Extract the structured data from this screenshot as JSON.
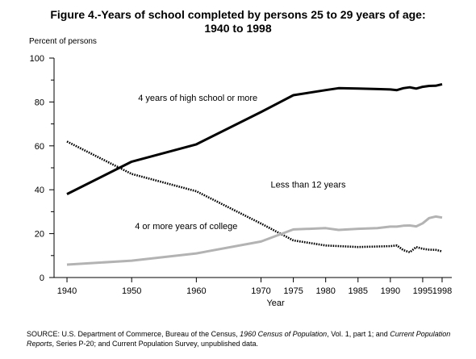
{
  "chart_data": {
    "type": "line",
    "title_line1": "Figure 4.-Years of school completed by persons 25 to 29 years of age:",
    "title_line2": "1940 to 1998",
    "ylabel": "Percent of persons",
    "xlabel": "Year",
    "ylim": [
      0,
      100
    ],
    "yticks": [
      "0",
      "20",
      "40",
      "60",
      "80",
      "100"
    ],
    "xticks": [
      "1940",
      "1950",
      "1960",
      "1970",
      "1975",
      "1980",
      "1985",
      "1990",
      "1995",
      "1998"
    ],
    "grid": false,
    "series": [
      {
        "name": "4 years of high school or more",
        "style": "solid",
        "color": "#000000",
        "x": [
          1940,
          1950,
          1960,
          1970,
          1975,
          1980,
          1982,
          1985,
          1988,
          1990,
          1991,
          1992,
          1993,
          1994,
          1995,
          1996,
          1997,
          1998
        ],
        "y": [
          38,
          52.8,
          60.7,
          75.4,
          83.1,
          85.4,
          86.3,
          86.1,
          85.9,
          85.7,
          85.4,
          86.3,
          86.7,
          86.1,
          86.9,
          87.3,
          87.4,
          88.1
        ]
      },
      {
        "name": "Less than 12 years",
        "style": "dotted",
        "color": "#000000",
        "x": [
          1940,
          1950,
          1960,
          1970,
          1975,
          1980,
          1985,
          1990,
          1991,
          1992,
          1993,
          1994,
          1995,
          1996,
          1997,
          1998
        ],
        "y": [
          62,
          47.2,
          39.3,
          24.6,
          16.9,
          14.6,
          13.9,
          14.3,
          14.6,
          12.5,
          11.5,
          13.9,
          13.1,
          12.7,
          12.6,
          11.9
        ]
      },
      {
        "name": "4 or more years of college",
        "style": "solid",
        "color": "#b3b3b3",
        "x": [
          1940,
          1950,
          1960,
          1970,
          1975,
          1980,
          1982,
          1985,
          1988,
          1990,
          1991,
          1992,
          1993,
          1994,
          1995,
          1996,
          1997,
          1998
        ],
        "y": [
          5.9,
          7.7,
          11,
          16.4,
          21.9,
          22.5,
          21.7,
          22.2,
          22.5,
          23.2,
          23.2,
          23.6,
          23.7,
          23.3,
          24.7,
          27.1,
          27.8,
          27.3
        ]
      }
    ]
  },
  "source": {
    "prefix": "SOURCE:  U.S. Department of Commerce, Bureau of the Census, ",
    "italic1": "1960 Census of Population",
    "mid": ", Vol. 1, part 1; and ",
    "italic2": "Current Population Reports",
    "suffix": ", Series P-20; and Current Population Survey, unpublished data."
  }
}
